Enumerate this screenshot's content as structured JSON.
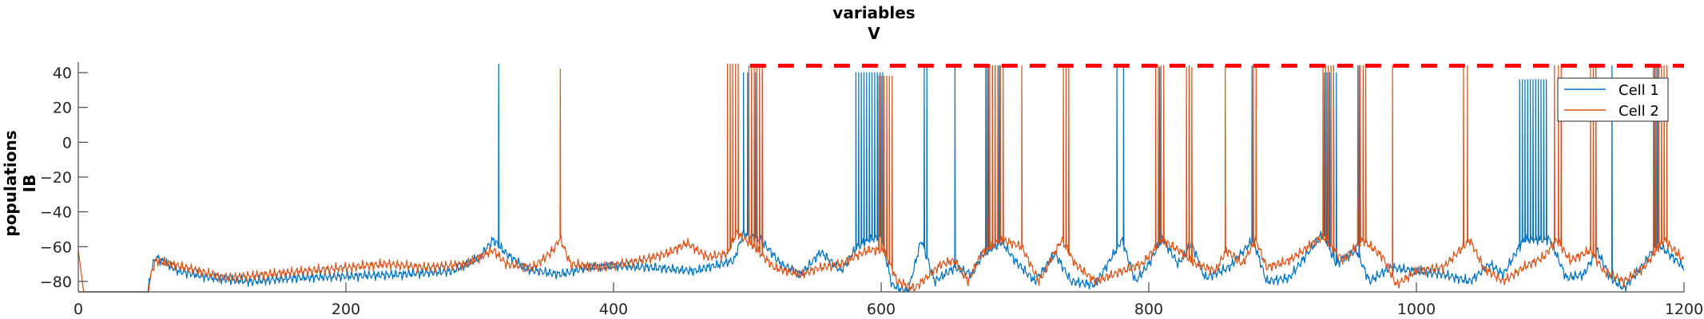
{
  "chart_data": {
    "type": "line",
    "title": [
      "variables",
      "V"
    ],
    "ylabel": [
      "populations",
      "IB"
    ],
    "xlabel": "",
    "xlim": [
      0,
      1200
    ],
    "ylim": [
      -86,
      46
    ],
    "xticks": [
      0,
      200,
      400,
      600,
      800,
      1000,
      1200
    ],
    "yticks": [
      -80,
      -60,
      -40,
      -20,
      0,
      20,
      40
    ],
    "grid": false,
    "legend_position": "top-right",
    "colors": {
      "cell1": "#0072BD",
      "cell2": "#D95319",
      "marker": "#FF0000"
    },
    "series": [
      {
        "name": "Cell 1",
        "color": "#0072BD",
        "baseline": [
          [
            0,
            -86
          ],
          [
            52,
            -86
          ],
          [
            55,
            -72
          ],
          [
            58,
            -66
          ],
          [
            75,
            -74
          ],
          [
            100,
            -78
          ],
          [
            130,
            -80
          ],
          [
            160,
            -78
          ],
          [
            200,
            -77
          ],
          [
            240,
            -76
          ],
          [
            280,
            -74
          ],
          [
            300,
            -66
          ],
          [
            310,
            -56
          ],
          [
            320,
            -64
          ],
          [
            335,
            -73
          ],
          [
            360,
            -76
          ],
          [
            380,
            -72
          ],
          [
            400,
            -71
          ],
          [
            430,
            -72
          ],
          [
            460,
            -74
          ],
          [
            490,
            -68
          ],
          [
            497,
            -52
          ],
          [
            510,
            -56
          ],
          [
            525,
            -70
          ],
          [
            540,
            -76
          ],
          [
            555,
            -63
          ],
          [
            570,
            -74
          ],
          [
            582,
            -60
          ],
          [
            590,
            -56
          ],
          [
            600,
            -54
          ],
          [
            608,
            -82
          ],
          [
            620,
            -86
          ],
          [
            630,
            -56
          ],
          [
            640,
            -80
          ],
          [
            655,
            -72
          ],
          [
            668,
            -76
          ],
          [
            675,
            -65
          ],
          [
            690,
            -57
          ],
          [
            700,
            -68
          ],
          [
            715,
            -80
          ],
          [
            730,
            -64
          ],
          [
            742,
            -80
          ],
          [
            760,
            -82
          ],
          [
            780,
            -56
          ],
          [
            790,
            -80
          ],
          [
            800,
            -70
          ],
          [
            810,
            -55
          ],
          [
            822,
            -70
          ],
          [
            832,
            -58
          ],
          [
            842,
            -78
          ],
          [
            860,
            -72
          ],
          [
            878,
            -56
          ],
          [
            888,
            -80
          ],
          [
            905,
            -78
          ],
          [
            930,
            -52
          ],
          [
            940,
            -70
          ],
          [
            955,
            -62
          ],
          [
            965,
            -80
          ],
          [
            980,
            -72
          ],
          [
            1000,
            -74
          ],
          [
            1020,
            -76
          ],
          [
            1040,
            -80
          ],
          [
            1055,
            -70
          ],
          [
            1065,
            -76
          ],
          [
            1080,
            -56
          ],
          [
            1100,
            -56
          ],
          [
            1112,
            -78
          ],
          [
            1125,
            -76
          ],
          [
            1135,
            -62
          ],
          [
            1145,
            -78
          ],
          [
            1155,
            -84
          ],
          [
            1170,
            -70
          ],
          [
            1180,
            -58
          ],
          [
            1190,
            -65
          ],
          [
            1200,
            -72
          ]
        ],
        "spikes": [
          [
            314,
            45
          ],
          [
            497,
            40
          ],
          [
            500,
            40
          ],
          [
            503,
            40
          ],
          [
            506,
            40
          ],
          [
            509,
            40
          ],
          [
            511,
            40
          ],
          [
            581,
            40
          ],
          [
            583,
            40
          ],
          [
            585,
            40
          ],
          [
            587,
            40
          ],
          [
            589,
            40
          ],
          [
            591,
            40
          ],
          [
            593,
            40
          ],
          [
            595,
            40
          ],
          [
            597,
            40
          ],
          [
            599,
            40
          ],
          [
            601,
            40
          ],
          [
            632,
            44
          ],
          [
            634,
            44
          ],
          [
            655,
            44
          ],
          [
            678,
            44
          ],
          [
            680,
            44
          ],
          [
            683,
            44
          ],
          [
            685,
            44
          ],
          [
            688,
            44
          ],
          [
            776,
            44
          ],
          [
            781,
            44
          ],
          [
            808,
            43
          ],
          [
            830,
            44
          ],
          [
            877,
            44
          ],
          [
            931,
            40
          ],
          [
            933,
            40
          ],
          [
            935,
            40
          ],
          [
            938,
            40
          ],
          [
            940,
            40
          ],
          [
            957,
            44
          ],
          [
            1077,
            36
          ],
          [
            1079,
            36
          ],
          [
            1081,
            36
          ],
          [
            1083,
            36
          ],
          [
            1085,
            36
          ],
          [
            1087,
            36
          ],
          [
            1089,
            36
          ],
          [
            1091,
            36
          ],
          [
            1093,
            36
          ],
          [
            1095,
            36
          ],
          [
            1097,
            36
          ],
          [
            1134,
            44
          ],
          [
            1146,
            44
          ],
          [
            1178,
            44
          ],
          [
            1180,
            44
          ]
        ]
      },
      {
        "name": "Cell 2",
        "color": "#D95319",
        "baseline": [
          [
            0,
            -62
          ],
          [
            4,
            -86
          ],
          [
            52,
            -86
          ],
          [
            55,
            -74
          ],
          [
            58,
            -68
          ],
          [
            80,
            -72
          ],
          [
            110,
            -78
          ],
          [
            140,
            -76
          ],
          [
            170,
            -74
          ],
          [
            200,
            -72
          ],
          [
            230,
            -70
          ],
          [
            260,
            -72
          ],
          [
            290,
            -70
          ],
          [
            310,
            -62
          ],
          [
            320,
            -70
          ],
          [
            340,
            -72
          ],
          [
            355,
            -62
          ],
          [
            360,
            -55
          ],
          [
            368,
            -70
          ],
          [
            390,
            -72
          ],
          [
            420,
            -68
          ],
          [
            440,
            -64
          ],
          [
            455,
            -58
          ],
          [
            470,
            -66
          ],
          [
            485,
            -64
          ],
          [
            492,
            -52
          ],
          [
            505,
            -60
          ],
          [
            520,
            -72
          ],
          [
            540,
            -76
          ],
          [
            555,
            -72
          ],
          [
            570,
            -70
          ],
          [
            580,
            -66
          ],
          [
            590,
            -62
          ],
          [
            602,
            -62
          ],
          [
            612,
            -80
          ],
          [
            625,
            -84
          ],
          [
            645,
            -70
          ],
          [
            655,
            -68
          ],
          [
            665,
            -80
          ],
          [
            675,
            -64
          ],
          [
            690,
            -56
          ],
          [
            705,
            -60
          ],
          [
            718,
            -80
          ],
          [
            735,
            -56
          ],
          [
            745,
            -70
          ],
          [
            760,
            -80
          ],
          [
            780,
            -74
          ],
          [
            795,
            -70
          ],
          [
            810,
            -56
          ],
          [
            822,
            -62
          ],
          [
            835,
            -70
          ],
          [
            850,
            -74
          ],
          [
            858,
            -62
          ],
          [
            870,
            -70
          ],
          [
            880,
            -56
          ],
          [
            888,
            -72
          ],
          [
            905,
            -68
          ],
          [
            930,
            -54
          ],
          [
            945,
            -68
          ],
          [
            960,
            -56
          ],
          [
            975,
            -66
          ],
          [
            985,
            -82
          ],
          [
            1000,
            -74
          ],
          [
            1020,
            -72
          ],
          [
            1040,
            -56
          ],
          [
            1050,
            -72
          ],
          [
            1065,
            -80
          ],
          [
            1080,
            -72
          ],
          [
            1095,
            -66
          ],
          [
            1105,
            -56
          ],
          [
            1115,
            -68
          ],
          [
            1130,
            -62
          ],
          [
            1140,
            -74
          ],
          [
            1155,
            -80
          ],
          [
            1170,
            -72
          ],
          [
            1185,
            -56
          ],
          [
            1195,
            -64
          ],
          [
            1200,
            -68
          ]
        ],
        "spikes": [
          [
            360,
            42
          ],
          [
            485,
            45
          ],
          [
            487,
            45
          ],
          [
            489,
            45
          ],
          [
            491,
            45
          ],
          [
            493,
            45
          ],
          [
            501,
            44
          ],
          [
            503,
            44
          ],
          [
            505,
            44
          ],
          [
            507,
            44
          ],
          [
            509,
            44
          ],
          [
            511,
            44
          ],
          [
            598,
            38
          ],
          [
            600,
            38
          ],
          [
            602,
            38
          ],
          [
            604,
            38
          ],
          [
            606,
            38
          ],
          [
            608,
            38
          ],
          [
            679,
            44
          ],
          [
            681,
            44
          ],
          [
            683,
            44
          ],
          [
            685,
            44
          ],
          [
            687,
            44
          ],
          [
            689,
            44
          ],
          [
            691,
            44
          ],
          [
            705,
            44
          ],
          [
            736,
            44
          ],
          [
            738,
            44
          ],
          [
            740,
            44
          ],
          [
            805,
            44
          ],
          [
            807,
            44
          ],
          [
            809,
            44
          ],
          [
            811,
            44
          ],
          [
            828,
            43
          ],
          [
            830,
            43
          ],
          [
            832,
            43
          ],
          [
            857,
            44
          ],
          [
            878,
            44
          ],
          [
            880,
            44
          ],
          [
            930,
            44
          ],
          [
            932,
            44
          ],
          [
            934,
            44
          ],
          [
            936,
            44
          ],
          [
            938,
            44
          ],
          [
            956,
            44
          ],
          [
            958,
            44
          ],
          [
            960,
            44
          ],
          [
            962,
            44
          ],
          [
            982,
            44
          ],
          [
            1035,
            44
          ],
          [
            1038,
            44
          ],
          [
            1103,
            44
          ],
          [
            1106,
            44
          ],
          [
            1108,
            44
          ],
          [
            1130,
            44
          ],
          [
            1132,
            44
          ],
          [
            1134,
            44
          ],
          [
            1177,
            44
          ],
          [
            1179,
            44
          ],
          [
            1181,
            44
          ],
          [
            1183,
            44
          ],
          [
            1185,
            44
          ],
          [
            1187,
            44
          ]
        ]
      }
    ],
    "marker_line": {
      "style": "dashed",
      "color": "#FF0000",
      "y": 44,
      "x": [
        502,
        1200
      ]
    }
  }
}
